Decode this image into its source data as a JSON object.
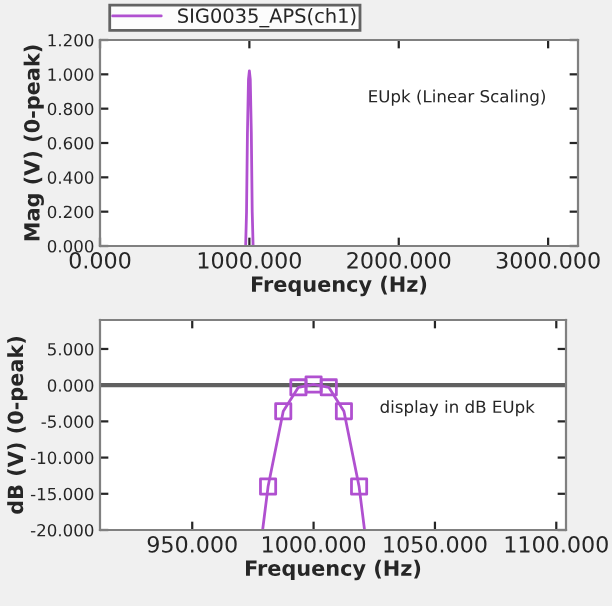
{
  "chart_data": [
    {
      "type": "line",
      "xlabel": "Frequency (Hz)",
      "ylabel": "Mag (V) (0-peak)",
      "xlim": [
        0,
        3200
      ],
      "ylim": [
        0,
        1.2
      ],
      "xticks": [
        {
          "value": 0,
          "label": "0.000"
        },
        {
          "value": 1000,
          "label": "1000.000"
        },
        {
          "value": 2000,
          "label": "2000.000"
        },
        {
          "value": 3000,
          "label": "3000.000"
        }
      ],
      "yticks": [
        {
          "value": 0,
          "label": "0.000"
        },
        {
          "value": 0.2,
          "label": "0.200"
        },
        {
          "value": 0.4,
          "label": "0.400"
        },
        {
          "value": 0.6,
          "label": "0.600"
        },
        {
          "value": 0.8,
          "label": "0.800"
        },
        {
          "value": 1.0,
          "label": "1.000"
        },
        {
          "value": 1.2,
          "label": "1.200"
        }
      ],
      "legend": "top left",
      "grid": false,
      "annotations": [
        "EUpk (Linear Scaling)"
      ],
      "series": [
        {
          "name": "SIG0035_APS(ch1)",
          "color": "#b050d0",
          "x": [
            975,
            981,
            987,
            994,
            1000,
            1006,
            1013,
            1019,
            1025
          ],
          "values": [
            0,
            0.2,
            0.66,
            0.97,
            1.02,
            0.97,
            0.66,
            0.2,
            0
          ]
        }
      ]
    },
    {
      "type": "line",
      "xlabel": "Frequency (Hz)",
      "ylabel": "dB (V) (0-peak)",
      "xlim": [
        912,
        1104
      ],
      "ylim": [
        -20,
        9
      ],
      "xticks": [
        {
          "value": 950,
          "label": "950.000"
        },
        {
          "value": 1000,
          "label": "1000.000"
        },
        {
          "value": 1050,
          "label": "1050.000"
        },
        {
          "value": 1100,
          "label": "1100.000"
        }
      ],
      "yticks": [
        {
          "value": -20,
          "label": "-20.000"
        },
        {
          "value": -15,
          "label": "-15.000"
        },
        {
          "value": -10,
          "label": "-10.000"
        },
        {
          "value": -5,
          "label": "-5.000"
        },
        {
          "value": 0,
          "label": "0.000"
        },
        {
          "value": 5,
          "label": "5.000"
        }
      ],
      "grid": false,
      "annotations": [
        "display in dB EUpk"
      ],
      "ref_lines": [
        {
          "axis": "y",
          "value": 0,
          "color": "#606060"
        }
      ],
      "series": [
        {
          "color": "#b050d0",
          "marker": "none",
          "x": [
            979,
            981.25,
            987.5,
            993.75,
            1000,
            1006.25,
            1012.5,
            1018.75,
            1021
          ],
          "values": [
            -20,
            -14,
            -3.6,
            -0.3,
            0.1,
            -0.3,
            -3.6,
            -14,
            -20
          ]
        },
        {
          "type": "scatter",
          "color": "#b050d0",
          "marker": "square",
          "x": [
            981.25,
            987.5,
            993.75,
            1000,
            1006.25,
            1012.5,
            1018.75
          ],
          "values": [
            -14,
            -3.6,
            -0.3,
            0.1,
            -0.3,
            -3.6,
            -14
          ]
        }
      ]
    }
  ]
}
